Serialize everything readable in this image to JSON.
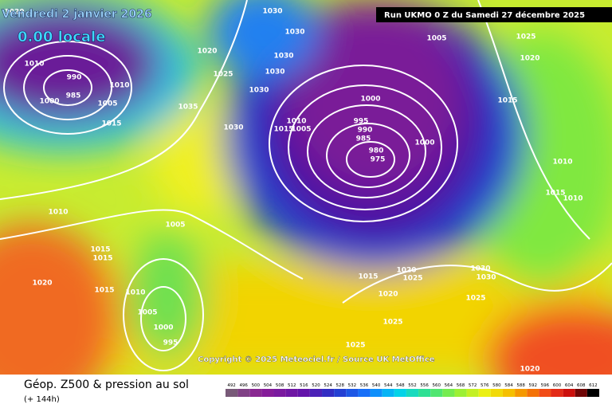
{
  "header": {
    "date": "Vendredi 2 janvier 2026",
    "time": "0.00 locale",
    "run": "Run UKMO 0 Z du Samedi 27 décembre 2025"
  },
  "copyright": "Copyright © 2025 Meteociel.fr / Source UK MetOffice",
  "footer": {
    "title": "Géop. Z500 & pression au sol",
    "lead": "(+ 144h)"
  },
  "colorbar": {
    "labels": [
      492,
      496,
      500,
      504,
      508,
      512,
      516,
      520,
      524,
      528,
      532,
      536,
      540,
      544,
      548,
      552,
      556,
      560,
      564,
      568,
      572,
      576,
      580,
      584,
      588,
      592,
      596,
      600,
      604,
      608,
      612
    ]
  },
  "isobar_labels": [
    990,
    985,
    1000,
    1010,
    1005,
    1010,
    1015,
    1020,
    1025,
    1035,
    1030,
    1030,
    1030,
    1030,
    1030,
    1030,
    1005,
    1025,
    1020,
    1015,
    1000,
    1000,
    995,
    990,
    985,
    980,
    975,
    1010,
    1005,
    1015,
    1010,
    1005,
    1015,
    1015,
    1020,
    1015,
    1010,
    1005,
    1000,
    995,
    1015,
    1020,
    1025,
    1020,
    1025,
    1025,
    1030,
    1030,
    1025,
    1010,
    1015,
    1010,
    1020,
    1020
  ]
}
